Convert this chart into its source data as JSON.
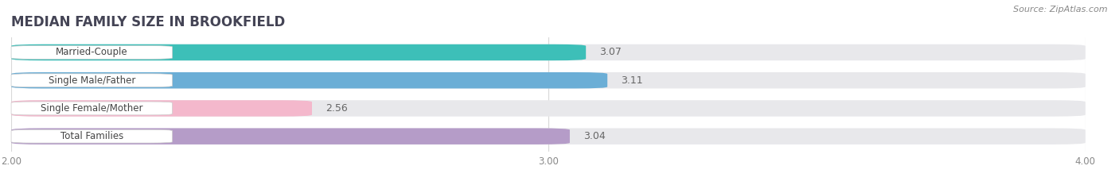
{
  "title": "MEDIAN FAMILY SIZE IN BROOKFIELD",
  "source": "Source: ZipAtlas.com",
  "categories": [
    "Married-Couple",
    "Single Male/Father",
    "Single Female/Mother",
    "Total Families"
  ],
  "values": [
    3.07,
    3.11,
    2.56,
    3.04
  ],
  "bar_colors": [
    "#3dbfb8",
    "#6baed6",
    "#f4b8cc",
    "#b59cc8"
  ],
  "xlim": [
    2.0,
    4.0
  ],
  "xticks": [
    2.0,
    3.0,
    4.0
  ],
  "xtick_labels": [
    "2.00",
    "3.00",
    "4.00"
  ],
  "background_color": "#ffffff",
  "bar_bg_color": "#e8e8eb",
  "title_fontsize": 12,
  "label_fontsize": 8.5,
  "value_fontsize": 9,
  "source_fontsize": 8
}
